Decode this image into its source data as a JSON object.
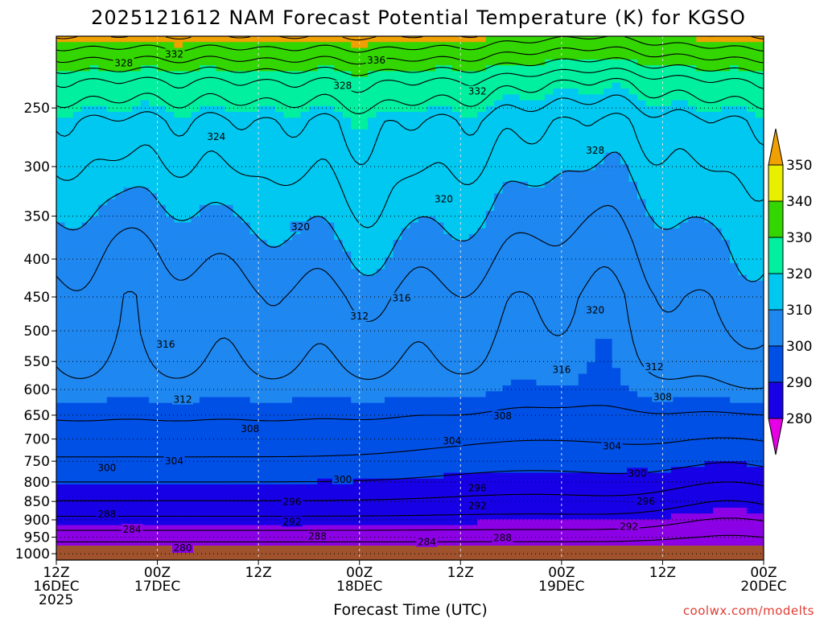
{
  "chart_data": {
    "type": "heatmap",
    "title": "2025121612 NAM Forecast Potential Temperature (K) for KGSO",
    "xlabel": "Forecast Time (UTC)",
    "ylabel": "",
    "credit": "coolwx.com/modelts",
    "y_axis": {
      "scale": "pressure (log)",
      "ylim": [
        1020,
        200
      ],
      "ticks": [
        250,
        300,
        350,
        400,
        450,
        500,
        550,
        600,
        650,
        700,
        750,
        800,
        850,
        900,
        950,
        1000
      ],
      "tick_labels": [
        "250",
        "300",
        "350",
        "400",
        "450",
        "500",
        "550",
        "600",
        "650",
        "700",
        "750",
        "800",
        "850",
        "900",
        "950",
        "1000"
      ]
    },
    "x_axis": {
      "xlim_hours": [
        0,
        84
      ],
      "ticks": [
        {
          "hour": 0,
          "line1": "12Z",
          "line2": "16DEC",
          "line3": "2025"
        },
        {
          "hour": 12,
          "line1": "00Z",
          "line2": "17DEC",
          "line3": ""
        },
        {
          "hour": 24,
          "line1": "12Z",
          "line2": "",
          "line3": ""
        },
        {
          "hour": 36,
          "line1": "00Z",
          "line2": "18DEC",
          "line3": ""
        },
        {
          "hour": 48,
          "line1": "12Z",
          "line2": "",
          "line3": ""
        },
        {
          "hour": 60,
          "line1": "00Z",
          "line2": "19DEC",
          "line3": ""
        },
        {
          "hour": 72,
          "line1": "12Z",
          "line2": "",
          "line3": ""
        },
        {
          "hour": 84,
          "line1": "00Z",
          "line2": "20DEC",
          "line3": ""
        }
      ]
    },
    "grid": true,
    "colorbar": {
      "levels": [
        280,
        290,
        300,
        310,
        320,
        330,
        340,
        350
      ],
      "labels": [
        "280",
        "290",
        "300",
        "310",
        "320",
        "330",
        "340",
        "350"
      ],
      "colors": [
        "#e600e6",
        "#8c00e6",
        "#1800e6",
        "#0050e6",
        "#1f87f0",
        "#00c8f0",
        "#00f0a0",
        "#33d600",
        "#e8f000",
        "#f0a000"
      ]
    },
    "contour_labels": [
      {
        "text": "332",
        "hour": 14,
        "p": 212
      },
      {
        "text": "328",
        "hour": 8,
        "p": 218
      },
      {
        "text": "336",
        "hour": 38,
        "p": 216
      },
      {
        "text": "328",
        "hour": 34,
        "p": 234
      },
      {
        "text": "332",
        "hour": 50,
        "p": 238
      },
      {
        "text": "324",
        "hour": 19,
        "p": 274
      },
      {
        "text": "328",
        "hour": 64,
        "p": 286
      },
      {
        "text": "320",
        "hour": 46,
        "p": 333
      },
      {
        "text": "320",
        "hour": 29,
        "p": 363
      },
      {
        "text": "316",
        "hour": 41,
        "p": 453
      },
      {
        "text": "312",
        "hour": 36,
        "p": 479
      },
      {
        "text": "320",
        "hour": 64,
        "p": 470
      },
      {
        "text": "316",
        "hour": 13,
        "p": 523
      },
      {
        "text": "316",
        "hour": 60,
        "p": 566
      },
      {
        "text": "312",
        "hour": 71,
        "p": 561
      },
      {
        "text": "312",
        "hour": 15,
        "p": 621
      },
      {
        "text": "308",
        "hour": 53,
        "p": 653
      },
      {
        "text": "308",
        "hour": 72,
        "p": 616
      },
      {
        "text": "308",
        "hour": 23,
        "p": 680
      },
      {
        "text": "304",
        "hour": 47,
        "p": 706
      },
      {
        "text": "304",
        "hour": 66,
        "p": 718
      },
      {
        "text": "304",
        "hour": 14,
        "p": 752
      },
      {
        "text": "300",
        "hour": 6,
        "p": 768
      },
      {
        "text": "300",
        "hour": 34,
        "p": 796
      },
      {
        "text": "300",
        "hour": 69,
        "p": 781
      },
      {
        "text": "296",
        "hour": 28,
        "p": 853
      },
      {
        "text": "296",
        "hour": 50,
        "p": 817
      },
      {
        "text": "296",
        "hour": 70,
        "p": 852
      },
      {
        "text": "292",
        "hour": 50,
        "p": 864
      },
      {
        "text": "292",
        "hour": 28,
        "p": 908
      },
      {
        "text": "292",
        "hour": 68,
        "p": 922
      },
      {
        "text": "288",
        "hour": 6,
        "p": 887
      },
      {
        "text": "288",
        "hour": 31,
        "p": 950
      },
      {
        "text": "288",
        "hour": 53,
        "p": 955
      },
      {
        "text": "284",
        "hour": 9,
        "p": 930
      },
      {
        "text": "284",
        "hour": 44,
        "p": 967
      },
      {
        "text": "280",
        "hour": 15,
        "p": 985
      }
    ],
    "surface": {
      "color": "#a0522d",
      "pressure_from": 1020,
      "pressure_to": 975
    }
  }
}
